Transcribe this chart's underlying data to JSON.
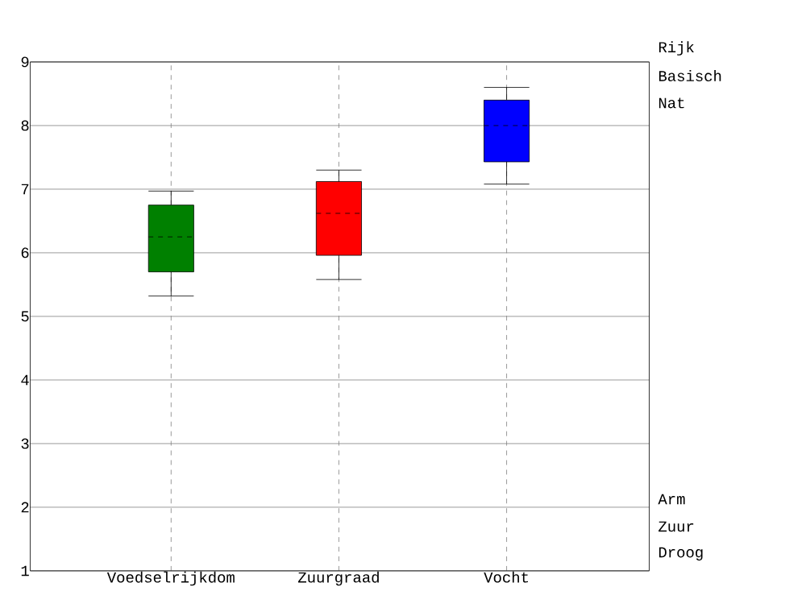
{
  "chart_data": {
    "type": "box",
    "categories": [
      "Voedselrijkdom",
      "Zuurgraad",
      "Vocht"
    ],
    "colors": [
      "#008000",
      "#ff0000",
      "#0000ff"
    ],
    "boxes": [
      {
        "low": 5.32,
        "q1": 5.7,
        "median": 6.25,
        "q3": 6.75,
        "high": 6.97
      },
      {
        "low": 5.58,
        "q1": 5.96,
        "median": 6.62,
        "q3": 7.12,
        "high": 7.3
      },
      {
        "low": 7.08,
        "q1": 7.43,
        "median": 8.0,
        "q3": 8.4,
        "high": 8.6
      }
    ],
    "ylim": [
      1,
      9
    ],
    "yticks": [
      1,
      2,
      3,
      4,
      5,
      6,
      7,
      8,
      9
    ],
    "grid": true,
    "annotations": [
      "Rijk",
      "Basisch",
      "Nat",
      "Arm",
      "Zuur",
      "Droog"
    ]
  }
}
